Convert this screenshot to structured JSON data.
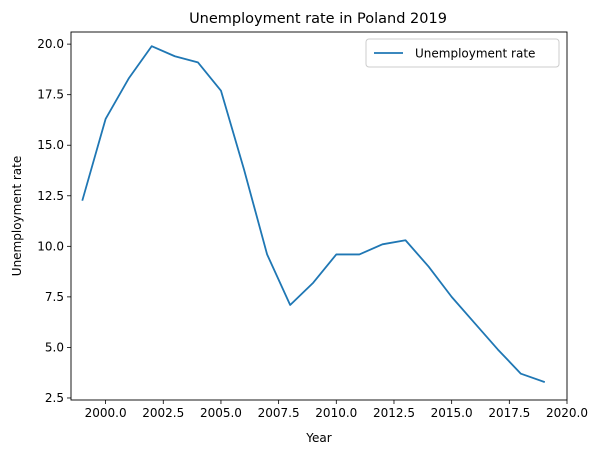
{
  "chart_data": {
    "type": "line",
    "title": "Unemployment rate in Poland 2019",
    "xlabel": "Year",
    "ylabel": "Unemployment rate",
    "xlim": [
      1998.5,
      2020.0
    ],
    "ylim": [
      2.4,
      20.6
    ],
    "xticks": [
      2000.0,
      2002.5,
      2005.0,
      2007.5,
      2010.0,
      2012.5,
      2015.0,
      2017.5,
      2020.0
    ],
    "xtick_labels": [
      "2000.0",
      "2002.5",
      "2005.0",
      "2007.5",
      "2010.0",
      "2012.5",
      "2015.0",
      "2017.5",
      "2020.0"
    ],
    "yticks": [
      2.5,
      5.0,
      7.5,
      10.0,
      12.5,
      15.0,
      17.5,
      20.0
    ],
    "ytick_labels": [
      "2.5",
      "5.0",
      "7.5",
      "10.0",
      "12.5",
      "15.0",
      "17.5",
      "20.0"
    ],
    "grid": false,
    "legend_position": "top-right",
    "series": [
      {
        "name": "Unemployment rate",
        "color": "#1f77b4",
        "x": [
          1999,
          2000,
          2001,
          2002,
          2003,
          2004,
          2005,
          2006,
          2007,
          2008,
          2009,
          2010,
          2011,
          2012,
          2013,
          2014,
          2015,
          2016,
          2017,
          2018,
          2019
        ],
        "y": [
          12.3,
          16.3,
          18.3,
          19.9,
          19.4,
          19.1,
          17.7,
          13.8,
          9.6,
          7.1,
          8.2,
          9.6,
          9.6,
          10.1,
          10.3,
          9.0,
          7.5,
          6.2,
          4.9,
          3.7,
          3.3
        ]
      }
    ]
  }
}
